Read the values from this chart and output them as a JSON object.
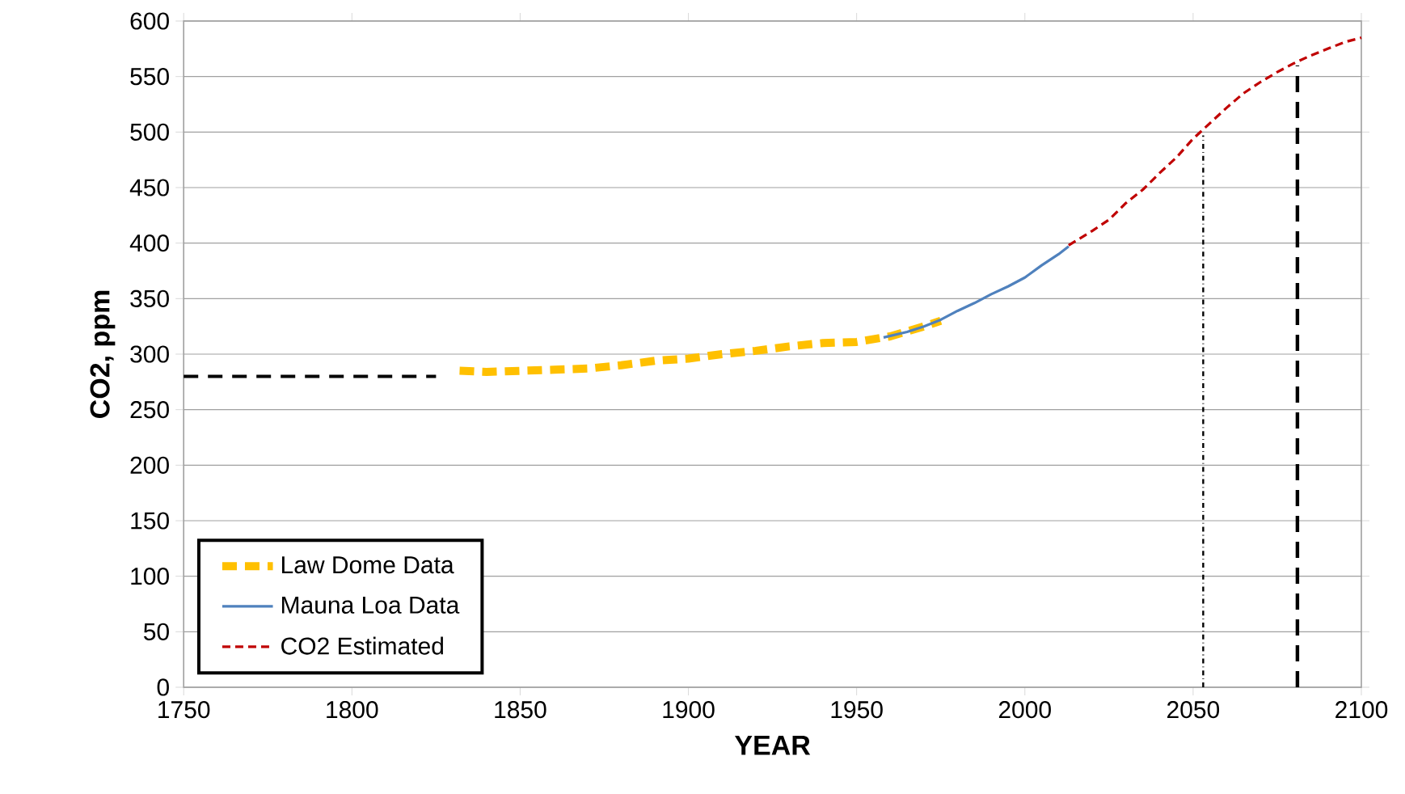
{
  "chart_data": {
    "type": "line",
    "xlabel": "YEAR",
    "ylabel": "CO2, ppm",
    "xlim": [
      1750,
      2100
    ],
    "ylim": [
      0,
      600
    ],
    "xticks": [
      1750,
      1800,
      1850,
      1900,
      1950,
      2000,
      2050,
      2100
    ],
    "yticks": [
      0,
      50,
      100,
      150,
      200,
      250,
      300,
      350,
      400,
      450,
      500,
      550,
      600
    ],
    "grid": "y",
    "legend": "bottom left",
    "marker": "none",
    "series": [
      {
        "name": "Law Dome Data",
        "color": "#ffc000",
        "line_style": "dashed",
        "x": [
          1832,
          1840,
          1850,
          1860,
          1870,
          1880,
          1890,
          1900,
          1910,
          1920,
          1930,
          1940,
          1950,
          1960,
          1970,
          1975
        ],
        "values": [
          285,
          284,
          285,
          286,
          287,
          290,
          294,
          296,
          300,
          303,
          307,
          310,
          311,
          316,
          325,
          330
        ]
      },
      {
        "name": "Mauna Loa Data",
        "color": "#4f81bd",
        "line_style": "solid",
        "x": [
          1958,
          1965,
          1970,
          1975,
          1980,
          1985,
          1990,
          1995,
          2000,
          2005,
          2010,
          2013
        ],
        "values": [
          315,
          320,
          325,
          331,
          339,
          346,
          354,
          361,
          369,
          380,
          390,
          397
        ]
      },
      {
        "name": "CO2 Estimated",
        "color": "#c00000",
        "line_style": "dashed",
        "x": [
          2013,
          2020,
          2025,
          2030,
          2035,
          2040,
          2045,
          2050,
          2055,
          2060,
          2065,
          2070,
          2075,
          2080,
          2085,
          2090,
          2095,
          2100
        ],
        "values": [
          398,
          411,
          421,
          436,
          448,
          463,
          477,
          494,
          508,
          522,
          535,
          545,
          554,
          562,
          569,
          575,
          581,
          585
        ]
      },
      {
        "color": "#000000",
        "line_style": "dashed",
        "x": [
          1750,
          1825
        ],
        "values": [
          280,
          280
        ]
      },
      {
        "color": "#000000",
        "line_style": "dashdot",
        "x": [
          2053,
          2053
        ],
        "values": [
          0,
          497
        ]
      },
      {
        "color": "#000000",
        "line_style": "dashed",
        "x": [
          2081,
          2081
        ],
        "values": [
          0,
          560
        ]
      }
    ]
  }
}
